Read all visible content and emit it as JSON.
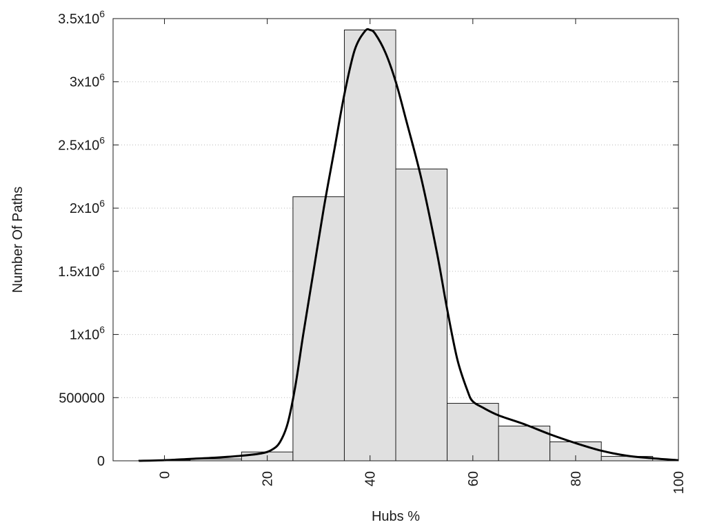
{
  "chart_data": {
    "type": "bar",
    "title": "",
    "xlabel": "Hubs %",
    "ylabel": "Number Of Paths",
    "xlim": [
      -10,
      100
    ],
    "ylim": [
      0,
      3500000
    ],
    "grid": "horizontal dotted",
    "x_ticks": [
      {
        "value": 0,
        "label": "0"
      },
      {
        "value": 20,
        "label": "20"
      },
      {
        "value": 40,
        "label": "40"
      },
      {
        "value": 60,
        "label": "60"
      },
      {
        "value": 80,
        "label": "80"
      },
      {
        "value": 100,
        "label": "100"
      }
    ],
    "y_ticks": [
      {
        "value": 0,
        "base": "0",
        "exp": ""
      },
      {
        "value": 500000,
        "base": "500000",
        "exp": ""
      },
      {
        "value": 1000000,
        "base": "1x10",
        "exp": "6"
      },
      {
        "value": 1500000,
        "base": "1.5x10",
        "exp": "6"
      },
      {
        "value": 2000000,
        "base": "2x10",
        "exp": "6"
      },
      {
        "value": 2500000,
        "base": "2.5x10",
        "exp": "6"
      },
      {
        "value": 3000000,
        "base": "3x10",
        "exp": "6"
      },
      {
        "value": 3500000,
        "base": "3.5x10",
        "exp": "6"
      }
    ],
    "bins": [
      {
        "x0": -5,
        "x1": 5,
        "value": 5000
      },
      {
        "x0": 5,
        "x1": 15,
        "value": 15000
      },
      {
        "x0": 15,
        "x1": 25,
        "value": 70000
      },
      {
        "x0": 25,
        "x1": 35,
        "value": 2090000
      },
      {
        "x0": 35,
        "x1": 45,
        "value": 3410000
      },
      {
        "x0": 45,
        "x1": 55,
        "value": 2310000
      },
      {
        "x0": 55,
        "x1": 65,
        "value": 455000
      },
      {
        "x0": 65,
        "x1": 75,
        "value": 275000
      },
      {
        "x0": 75,
        "x1": 85,
        "value": 150000
      },
      {
        "x0": 85,
        "x1": 95,
        "value": 35000
      }
    ],
    "series": [
      {
        "type": "line",
        "x": [
          -5,
          0,
          5,
          10,
          15,
          19,
          21,
          22.5,
          24,
          25.5,
          27,
          29,
          31,
          33,
          35,
          37,
          39,
          40,
          41,
          43,
          45,
          47,
          50,
          53,
          55,
          57,
          59,
          60,
          62,
          65,
          70,
          75,
          80,
          85,
          90,
          95,
          100
        ],
        "y": [
          0,
          5000,
          15000,
          25000,
          40000,
          60000,
          90000,
          150000,
          300000,
          600000,
          1000000,
          1500000,
          2000000,
          2450000,
          2900000,
          3250000,
          3400000,
          3410000,
          3380000,
          3230000,
          3000000,
          2700000,
          2230000,
          1650000,
          1200000,
          800000,
          550000,
          470000,
          420000,
          360000,
          290000,
          210000,
          140000,
          80000,
          40000,
          20000,
          5000
        ]
      }
    ]
  }
}
